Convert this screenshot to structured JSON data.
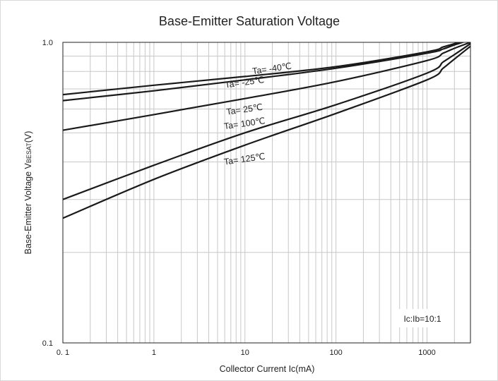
{
  "chart_data": {
    "type": "line",
    "title": "Base-Emitter Saturation Voltage",
    "xlabel": "Collector Current   Ic(mA)",
    "ylabel": "Base-Emitter Voltage  VBESAT(V)",
    "x_scale": "log",
    "y_scale": "log",
    "xlim": [
      0.1,
      3000
    ],
    "ylim": [
      0.1,
      1.0
    ],
    "x_ticks": [
      0.1,
      1,
      10,
      100,
      1000
    ],
    "x_tick_labels": [
      "0. 1",
      "1",
      "10",
      "100",
      "1000"
    ],
    "y_ticks": [
      0.1,
      1.0
    ],
    "y_tick_labels": [
      "0.1",
      "1.0"
    ],
    "grid": true,
    "annotation": "Ic:Ib=10:1",
    "series": [
      {
        "name": "Ta= -40℃",
        "label_at": [
          20,
          0.8
        ],
        "x": [
          0.1,
          1,
          10,
          100,
          1000,
          1500,
          2000,
          3000
        ],
        "y": [
          0.67,
          0.72,
          0.77,
          0.83,
          0.93,
          0.965,
          0.99,
          1.03
        ]
      },
      {
        "name": "Ta= -25℃",
        "label_at": [
          10,
          0.72
        ],
        "x": [
          0.1,
          1,
          10,
          100,
          1000,
          1500,
          2000,
          3000
        ],
        "y": [
          0.64,
          0.69,
          0.75,
          0.82,
          0.92,
          0.95,
          0.98,
          1.02
        ]
      },
      {
        "name": "Ta= 25℃",
        "label_at": [
          10,
          0.585
        ],
        "x": [
          0.1,
          1,
          10,
          100,
          1000,
          1500,
          2000,
          3000
        ],
        "y": [
          0.51,
          0.575,
          0.65,
          0.74,
          0.87,
          0.92,
          0.955,
          1.0
        ]
      },
      {
        "name": "Ta= 100℃",
        "label_at": [
          10,
          0.525
        ],
        "x": [
          0.1,
          1,
          10,
          100,
          1000,
          1500,
          2000,
          3000
        ],
        "y": [
          0.3,
          0.39,
          0.5,
          0.62,
          0.79,
          0.86,
          0.91,
          0.99
        ]
      },
      {
        "name": "Ta= 125℃",
        "label_at": [
          10,
          0.4
        ],
        "x": [
          0.1,
          1,
          10,
          100,
          1000,
          1500,
          2000,
          3000
        ],
        "y": [
          0.26,
          0.35,
          0.455,
          0.58,
          0.75,
          0.82,
          0.88,
          0.97
        ]
      }
    ]
  }
}
